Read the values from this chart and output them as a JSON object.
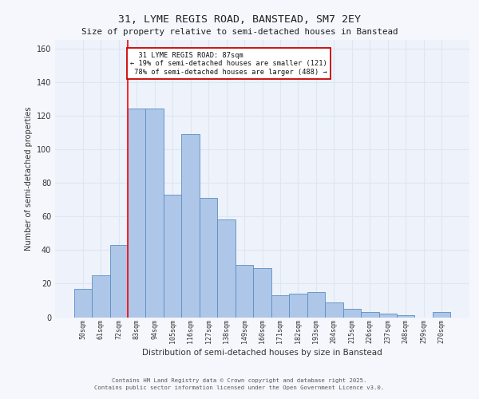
{
  "title1": "31, LYME REGIS ROAD, BANSTEAD, SM7 2EY",
  "title2": "Size of property relative to semi-detached houses in Banstead",
  "xlabel": "Distribution of semi-detached houses by size in Banstead",
  "ylabel": "Number of semi-detached properties",
  "categories": [
    "50sqm",
    "61sqm",
    "72sqm",
    "83sqm",
    "94sqm",
    "105sqm",
    "116sqm",
    "127sqm",
    "138sqm",
    "149sqm",
    "160sqm",
    "171sqm",
    "182sqm",
    "193sqm",
    "204sqm",
    "215sqm",
    "226sqm",
    "237sqm",
    "248sqm",
    "259sqm",
    "270sqm"
  ],
  "values": [
    17,
    25,
    43,
    124,
    124,
    73,
    109,
    71,
    58,
    31,
    29,
    13,
    14,
    15,
    9,
    5,
    3,
    2,
    1,
    0,
    3
  ],
  "bar_color": "#aec6e8",
  "bar_edge_color": "#5a8fc2",
  "property_bin_index": 3,
  "red_line_label": "31 LYME REGIS ROAD: 87sqm",
  "pct_smaller": 19,
  "count_smaller": 121,
  "pct_larger": 78,
  "count_larger": 488,
  "annotation_box_color": "#ffffff",
  "annotation_box_edge": "#cc0000",
  "grid_color": "#dce6f5",
  "background_color": "#eef2fa",
  "fig_background_color": "#f5f7fd",
  "ylim": [
    0,
    165
  ],
  "yticks": [
    0,
    20,
    40,
    60,
    80,
    100,
    120,
    140,
    160
  ],
  "footer1": "Contains HM Land Registry data © Crown copyright and database right 2025.",
  "footer2": "Contains public sector information licensed under the Open Government Licence v3.0."
}
